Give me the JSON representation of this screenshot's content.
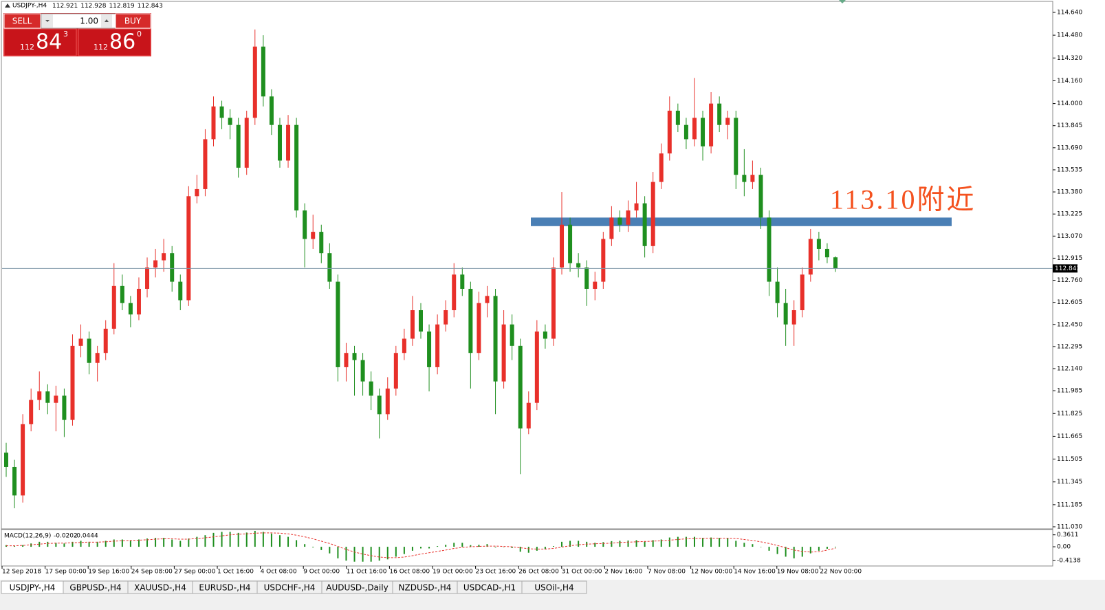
{
  "chart_data": [
    {
      "type": "candlestick",
      "title": "USDJPY-,H4",
      "up_color": "#e8302a",
      "down_color": "#1f8f1f",
      "ylim": [
        111.03,
        114.64
      ],
      "yticks": [
        {
          "value": 114.64,
          "label": "114.640"
        },
        {
          "value": 114.48,
          "label": "114.480"
        },
        {
          "value": 114.32,
          "label": "114.320"
        },
        {
          "value": 114.16,
          "label": "114.160"
        },
        {
          "value": 114.0,
          "label": "114.000"
        },
        {
          "value": 113.845,
          "label": "113.845"
        },
        {
          "value": 113.69,
          "label": "113.690"
        },
        {
          "value": 113.535,
          "label": "113.535"
        },
        {
          "value": 113.38,
          "label": "113.380"
        },
        {
          "value": 113.225,
          "label": "113.225"
        },
        {
          "value": 113.07,
          "label": "113.070"
        },
        {
          "value": 112.915,
          "label": "112.915"
        },
        {
          "value": 112.76,
          "label": "112.760"
        },
        {
          "value": 112.605,
          "label": "112.605"
        },
        {
          "value": 112.45,
          "label": "112.450"
        },
        {
          "value": 112.295,
          "label": "112.295"
        },
        {
          "value": 112.14,
          "label": "112.140"
        },
        {
          "value": 111.985,
          "label": "111.985"
        },
        {
          "value": 111.825,
          "label": "111.825"
        },
        {
          "value": 111.665,
          "label": "111.665"
        },
        {
          "value": 111.505,
          "label": "111.505"
        },
        {
          "value": 111.345,
          "label": "111.345"
        },
        {
          "value": 111.185,
          "label": "111.185"
        },
        {
          "value": 111.03,
          "label": "111.030"
        }
      ],
      "x_labels": [
        "12 Sep 2018",
        "17 Sep 00:00",
        "19 Sep 16:00",
        "24 Sep 08:00",
        "27 Sep 00:00",
        "1 Oct 16:00",
        "4 Oct 08:00",
        "9 Oct 00:00",
        "11 Oct 16:00",
        "16 Oct 08:00",
        "19 Oct 00:00",
        "23 Oct 16:00",
        "26 Oct 08:00",
        "31 Oct 00:00",
        "2 Nov 16:00",
        "7 Nov 08:00",
        "12 Nov 00:00",
        "14 Nov 16:00",
        "19 Nov 08:00",
        "22 Nov 00:00"
      ],
      "price_line_color": "#7f97a8",
      "zone": {
        "range": [
          113.14,
          113.2
        ],
        "color": "#4a7fb5",
        "label": "113.10附近",
        "label_color": "#f4511e"
      },
      "candles": [
        [
          111.55,
          111.62,
          111.38,
          111.45
        ],
        [
          111.45,
          111.5,
          111.16,
          111.25
        ],
        [
          111.25,
          111.82,
          111.2,
          111.75
        ],
        [
          111.75,
          112.0,
          111.7,
          111.92
        ],
        [
          111.92,
          112.12,
          111.85,
          111.98
        ],
        [
          111.98,
          112.03,
          111.82,
          111.9
        ],
        [
          111.9,
          112.02,
          111.7,
          111.95
        ],
        [
          111.95,
          112.0,
          111.66,
          111.78
        ],
        [
          111.78,
          112.38,
          111.74,
          112.3
        ],
        [
          112.3,
          112.45,
          112.22,
          112.35
        ],
        [
          112.35,
          112.4,
          112.1,
          112.18
        ],
        [
          112.18,
          112.3,
          112.05,
          112.25
        ],
        [
          112.25,
          112.48,
          112.2,
          112.42
        ],
        [
          112.42,
          112.88,
          112.38,
          112.72
        ],
        [
          112.72,
          112.8,
          112.55,
          112.6
        ],
        [
          112.6,
          112.65,
          112.43,
          112.52
        ],
        [
          112.52,
          112.78,
          112.48,
          112.7
        ],
        [
          112.7,
          112.92,
          112.64,
          112.85
        ],
        [
          112.85,
          112.98,
          112.78,
          112.9
        ],
        [
          112.9,
          113.05,
          112.82,
          112.95
        ],
        [
          112.95,
          113.0,
          112.68,
          112.75
        ],
        [
          112.75,
          112.8,
          112.55,
          112.62
        ],
        [
          112.62,
          113.42,
          112.58,
          113.35
        ],
        [
          113.35,
          113.5,
          113.3,
          113.4
        ],
        [
          113.4,
          113.82,
          113.35,
          113.75
        ],
        [
          113.75,
          114.05,
          113.7,
          113.98
        ],
        [
          113.98,
          114.02,
          113.82,
          113.9
        ],
        [
          113.9,
          113.96,
          113.75,
          113.85
        ],
        [
          113.85,
          113.9,
          113.48,
          113.55
        ],
        [
          113.55,
          113.95,
          113.5,
          113.9
        ],
        [
          113.9,
          114.52,
          113.85,
          114.4
        ],
        [
          114.4,
          114.48,
          113.98,
          114.05
        ],
        [
          114.05,
          114.1,
          113.78,
          113.85
        ],
        [
          113.85,
          113.9,
          113.55,
          113.6
        ],
        [
          113.6,
          113.92,
          113.55,
          113.85
        ],
        [
          113.85,
          113.9,
          113.2,
          113.25
        ],
        [
          113.25,
          113.3,
          112.85,
          113.05
        ],
        [
          113.05,
          113.22,
          112.98,
          113.1
        ],
        [
          113.1,
          113.15,
          112.88,
          112.95
        ],
        [
          112.95,
          113.02,
          112.7,
          112.75
        ],
        [
          112.75,
          112.8,
          112.05,
          112.15
        ],
        [
          112.15,
          112.32,
          112.05,
          112.25
        ],
        [
          112.25,
          112.3,
          111.95,
          112.2
        ],
        [
          112.2,
          112.25,
          111.95,
          112.05
        ],
        [
          112.05,
          112.12,
          111.85,
          111.95
        ],
        [
          111.95,
          112.0,
          111.65,
          111.82
        ],
        [
          111.82,
          112.08,
          111.78,
          112.0
        ],
        [
          112.0,
          112.3,
          111.95,
          112.25
        ],
        [
          112.25,
          112.42,
          112.2,
          112.35
        ],
        [
          112.35,
          112.65,
          112.3,
          112.55
        ],
        [
          112.55,
          112.6,
          112.35,
          112.4
        ],
        [
          112.4,
          112.45,
          111.98,
          112.15
        ],
        [
          112.15,
          112.52,
          112.1,
          112.45
        ],
        [
          112.45,
          112.62,
          112.4,
          112.55
        ],
        [
          112.55,
          112.88,
          112.5,
          112.8
        ],
        [
          112.8,
          112.85,
          112.65,
          112.7
        ],
        [
          112.7,
          112.75,
          112.0,
          112.25
        ],
        [
          112.25,
          112.68,
          112.2,
          112.6
        ],
        [
          112.6,
          112.72,
          112.5,
          112.65
        ],
        [
          112.65,
          112.7,
          111.82,
          112.05
        ],
        [
          112.05,
          112.55,
          112.0,
          112.45
        ],
        [
          112.45,
          112.52,
          112.2,
          112.3
        ],
        [
          112.3,
          112.35,
          111.4,
          111.72
        ],
        [
          111.72,
          111.98,
          111.68,
          111.9
        ],
        [
          111.9,
          112.48,
          111.85,
          112.4
        ],
        [
          112.4,
          112.45,
          112.28,
          112.35
        ],
        [
          112.35,
          112.92,
          112.3,
          112.85
        ],
        [
          112.85,
          113.38,
          112.8,
          113.15
        ],
        [
          113.15,
          113.2,
          112.82,
          112.88
        ],
        [
          112.88,
          112.95,
          112.78,
          112.85
        ],
        [
          112.85,
          112.9,
          112.58,
          112.7
        ],
        [
          112.7,
          112.82,
          112.62,
          112.75
        ],
        [
          112.75,
          113.1,
          112.7,
          113.05
        ],
        [
          113.05,
          113.28,
          113.0,
          113.2
        ],
        [
          113.2,
          113.25,
          113.1,
          113.15
        ],
        [
          113.15,
          113.32,
          113.1,
          113.25
        ],
        [
          113.25,
          113.45,
          113.2,
          113.3
        ],
        [
          113.3,
          113.35,
          112.92,
          113.0
        ],
        [
          113.0,
          113.52,
          112.95,
          113.45
        ],
        [
          113.45,
          113.72,
          113.4,
          113.65
        ],
        [
          113.65,
          114.05,
          113.6,
          113.95
        ],
        [
          113.95,
          114.0,
          113.8,
          113.85
        ],
        [
          113.85,
          113.9,
          113.68,
          113.75
        ],
        [
          113.75,
          114.18,
          113.7,
          113.9
        ],
        [
          113.9,
          113.95,
          113.6,
          113.7
        ],
        [
          113.7,
          114.08,
          113.65,
          114.0
        ],
        [
          114.0,
          114.05,
          113.8,
          113.85
        ],
        [
          113.85,
          113.95,
          113.75,
          113.9
        ],
        [
          113.9,
          113.95,
          113.4,
          113.5
        ],
        [
          113.5,
          113.68,
          113.35,
          113.45
        ],
        [
          113.45,
          113.6,
          113.4,
          113.5
        ],
        [
          113.5,
          113.55,
          113.12,
          113.2
        ],
        [
          113.2,
          113.25,
          112.65,
          112.75
        ],
        [
          112.75,
          112.85,
          112.5,
          112.6
        ],
        [
          112.6,
          112.7,
          112.3,
          112.45
        ],
        [
          112.45,
          112.62,
          112.3,
          112.55
        ],
        [
          112.55,
          112.85,
          112.5,
          112.8
        ],
        [
          112.8,
          113.12,
          112.75,
          113.05
        ],
        [
          113.05,
          113.1,
          112.9,
          112.98
        ],
        [
          112.98,
          113.02,
          112.88,
          112.921
        ],
        [
          112.921,
          112.928,
          112.819,
          112.843
        ]
      ]
    },
    {
      "type": "macd",
      "title": "MACD(12,26,9)",
      "ylim": [
        -0.56,
        0.5
      ],
      "yticks": [
        0.3611,
        {
          "value": 0,
          "label": "0.00"
        },
        -0.4138
      ],
      "series": [
        {
          "name": "macd",
          "color": "#1f8f1f",
          "values": [
            0.05,
            0.02,
            0.05,
            0.1,
            0.15,
            0.15,
            0.12,
            0.1,
            0.15,
            0.18,
            0.15,
            0.15,
            0.18,
            0.22,
            0.22,
            0.2,
            0.22,
            0.25,
            0.27,
            0.27,
            0.22,
            0.18,
            0.25,
            0.3,
            0.35,
            0.42,
            0.45,
            0.45,
            0.42,
            0.43,
            0.48,
            0.45,
            0.4,
            0.35,
            0.3,
            0.2,
            0.08,
            -0.02,
            -0.1,
            -0.2,
            -0.35,
            -0.42,
            -0.45,
            -0.45,
            -0.45,
            -0.42,
            -0.38,
            -0.3,
            -0.22,
            -0.12,
            -0.05,
            -0.05,
            0.02,
            0.06,
            0.12,
            0.12,
            0.05,
            0.06,
            0.08,
            -0.02,
            0.0,
            -0.04,
            -0.15,
            -0.18,
            -0.12,
            -0.08,
            0.02,
            0.15,
            0.18,
            0.18,
            0.15,
            0.12,
            0.14,
            0.17,
            0.18,
            0.19,
            0.2,
            0.17,
            0.2,
            0.22,
            0.28,
            0.3,
            0.3,
            0.3,
            0.27,
            0.28,
            0.27,
            0.25,
            0.18,
            0.12,
            0.08,
            0.0,
            -0.12,
            -0.22,
            -0.3,
            -0.35,
            -0.3,
            -0.2,
            -0.12,
            -0.06,
            -0.0202
          ]
        },
        {
          "name": "signal",
          "color": "#e8302a",
          "values": [
            0.03,
            0.03,
            0.04,
            0.06,
            0.08,
            0.1,
            0.11,
            0.11,
            0.12,
            0.13,
            0.14,
            0.14,
            0.15,
            0.17,
            0.18,
            0.19,
            0.2,
            0.21,
            0.23,
            0.24,
            0.24,
            0.23,
            0.23,
            0.25,
            0.27,
            0.3,
            0.33,
            0.36,
            0.38,
            0.39,
            0.41,
            0.42,
            0.42,
            0.41,
            0.39,
            0.35,
            0.3,
            0.24,
            0.17,
            0.1,
            0.01,
            -0.08,
            -0.16,
            -0.22,
            -0.27,
            -0.31,
            -0.33,
            -0.33,
            -0.31,
            -0.27,
            -0.22,
            -0.18,
            -0.14,
            -0.1,
            -0.05,
            -0.02,
            0.0,
            0.01,
            0.02,
            0.02,
            0.01,
            0.0,
            -0.03,
            -0.06,
            -0.07,
            -0.07,
            -0.05,
            -0.01,
            0.03,
            0.06,
            0.08,
            0.09,
            0.1,
            0.11,
            0.13,
            0.14,
            0.15,
            0.16,
            0.17,
            0.18,
            0.2,
            0.22,
            0.24,
            0.25,
            0.26,
            0.26,
            0.26,
            0.26,
            0.25,
            0.22,
            0.19,
            0.15,
            0.1,
            0.04,
            -0.03,
            -0.1,
            -0.14,
            -0.16,
            -0.15,
            -0.1,
            -0.0444
          ]
        }
      ]
    }
  ],
  "trade_panel": {
    "sell": "SELL",
    "buy": "BUY",
    "lot": "1.00",
    "bid": [
      112,
      84,
      3
    ],
    "ask": [
      112,
      86,
      0
    ]
  },
  "tabs": [
    "USDJPY-,H4",
    "GBPUSD-,H4",
    "XAUUSD-,H4",
    "EURUSD-,H4",
    "USDCHF-,H4",
    "AUDUSD-,Daily",
    "NZDUSD-,H4",
    "USDCAD-,H1",
    "USOil-,H4"
  ]
}
